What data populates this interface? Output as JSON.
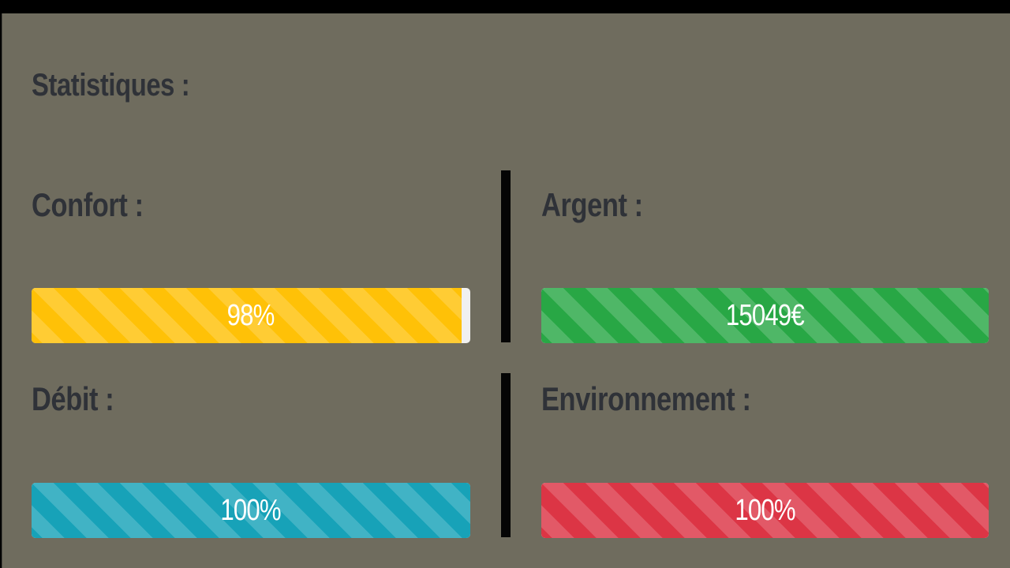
{
  "panel": {
    "title": "Statistiques :"
  },
  "stats": [
    {
      "key": "confort",
      "label": "Confort :",
      "display": "98%",
      "fill_percent": 98,
      "color": "#ffc107"
    },
    {
      "key": "argent",
      "label": "Argent :",
      "display": "15049€",
      "fill_percent": 100,
      "color": "#28a745"
    },
    {
      "key": "debit",
      "label": "Débit :",
      "display": "100%",
      "fill_percent": 100,
      "color": "#17a2b8"
    },
    {
      "key": "environnement",
      "label": "Environnement :",
      "display": "100%",
      "fill_percent": 100,
      "color": "#dc3545"
    }
  ],
  "colors": {
    "panel_background": "#6f6c5e",
    "label_text": "#2f3238",
    "bar_track": "#f0f0f0",
    "divider": "#050505"
  }
}
